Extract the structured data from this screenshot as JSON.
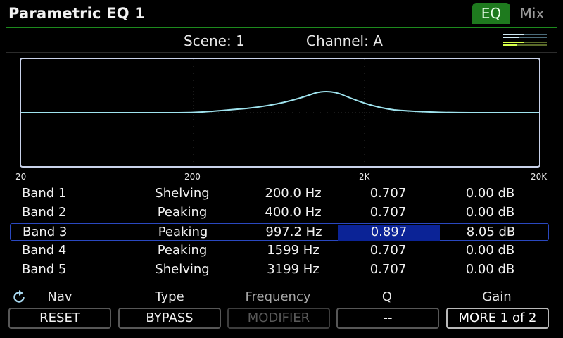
{
  "header": {
    "title": "Parametric EQ 1",
    "tabs": [
      {
        "label": "EQ",
        "active": true
      },
      {
        "label": "Mix",
        "active": false
      }
    ]
  },
  "status": {
    "scene": "Scene: 1",
    "channel": "Channel: A"
  },
  "graph": {
    "freq_labels": [
      "20",
      "200",
      "2K",
      "20K"
    ]
  },
  "bands": [
    {
      "name": "Band 1",
      "type": "Shelving",
      "frequency": "200.0 Hz",
      "q": "0.707",
      "gain": "0.00 dB"
    },
    {
      "name": "Band 2",
      "type": "Peaking",
      "frequency": "400.0 Hz",
      "q": "0.707",
      "gain": "0.00 dB"
    },
    {
      "name": "Band 3",
      "type": "Peaking",
      "frequency": "997.2 Hz",
      "q": "0.897",
      "gain": "8.05 dB"
    },
    {
      "name": "Band 4",
      "type": "Peaking",
      "frequency": "1599 Hz",
      "q": "0.707",
      "gain": "0.00 dB"
    },
    {
      "name": "Band 5",
      "type": "Shelving",
      "frequency": "3199 Hz",
      "q": "0.707",
      "gain": "0.00 dB"
    }
  ],
  "selected_band": "Band 3",
  "knobs": {
    "nav": "Nav",
    "type": "Type",
    "frequency": "Frequency",
    "q": "Q",
    "gain": "Gain"
  },
  "buttons": {
    "reset": "RESET",
    "bypass": "BYPASS",
    "modifier": "MODIFIER",
    "q_placeholder": "--",
    "more": "MORE 1 of 2"
  },
  "colors": {
    "accent_green": "#1e7a1e",
    "curve": "#9fe3ee",
    "selection": "#0b2396"
  },
  "icons": {
    "refresh": "refresh-icon",
    "levels": "level-meter-icon"
  }
}
